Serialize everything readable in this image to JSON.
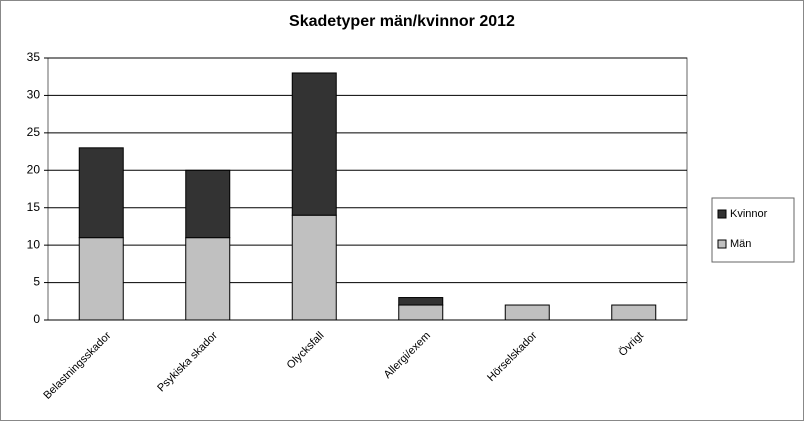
{
  "chart_data": {
    "type": "stacked-bar",
    "title": "Skadetyper män/kvinnor 2012",
    "categories": [
      "Belastningsskador",
      "Psykiska skador",
      "Olycksfall",
      "Allergi/exem",
      "Hörselskador",
      "Övrigt"
    ],
    "series": [
      {
        "name": "Män",
        "color": "#c0c0c0",
        "values": [
          11,
          11,
          14,
          2,
          2,
          2
        ]
      },
      {
        "name": "Kvinnor",
        "color": "#333333",
        "values": [
          12,
          9,
          19,
          1,
          0,
          0
        ]
      }
    ],
    "ylim": [
      0,
      35
    ],
    "yticks": [
      0,
      5,
      10,
      15,
      20,
      25,
      30,
      35
    ],
    "grid": true,
    "legend": "right"
  }
}
